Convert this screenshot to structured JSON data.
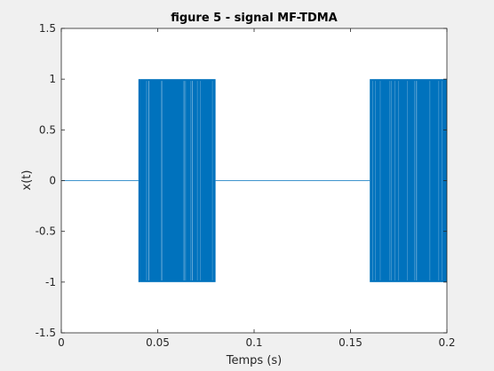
{
  "chart_data": {
    "type": "line",
    "title": "figure 5 - signal MF-TDMA",
    "xlabel": "Temps (s)",
    "ylabel": "x(t)",
    "xlim": [
      0,
      0.2
    ],
    "ylim": [
      -1.5,
      1.5
    ],
    "xticks": [
      0,
      0.05,
      0.1,
      0.15,
      0.2
    ],
    "xtick_labels": [
      "0",
      "0.05",
      "0.1",
      "0.15",
      "0.2"
    ],
    "yticks": [
      -1.5,
      -1,
      -0.5,
      0,
      0.5,
      1,
      1.5
    ],
    "ytick_labels": [
      "-1.5",
      "-1",
      "-0.5",
      "0",
      "0.5",
      "1",
      "1.5"
    ],
    "grid": false,
    "series": [
      {
        "color": "#0072bd",
        "segments": [
          {
            "x_start": 0,
            "x_end": 0.04,
            "amplitude": 0
          },
          {
            "x_start": 0.04,
            "x_end": 0.08,
            "amplitude": 1
          },
          {
            "x_start": 0.08,
            "x_end": 0.16,
            "amplitude": 0
          },
          {
            "x_start": 0.16,
            "x_end": 0.2,
            "amplitude": 1
          }
        ]
      }
    ]
  }
}
